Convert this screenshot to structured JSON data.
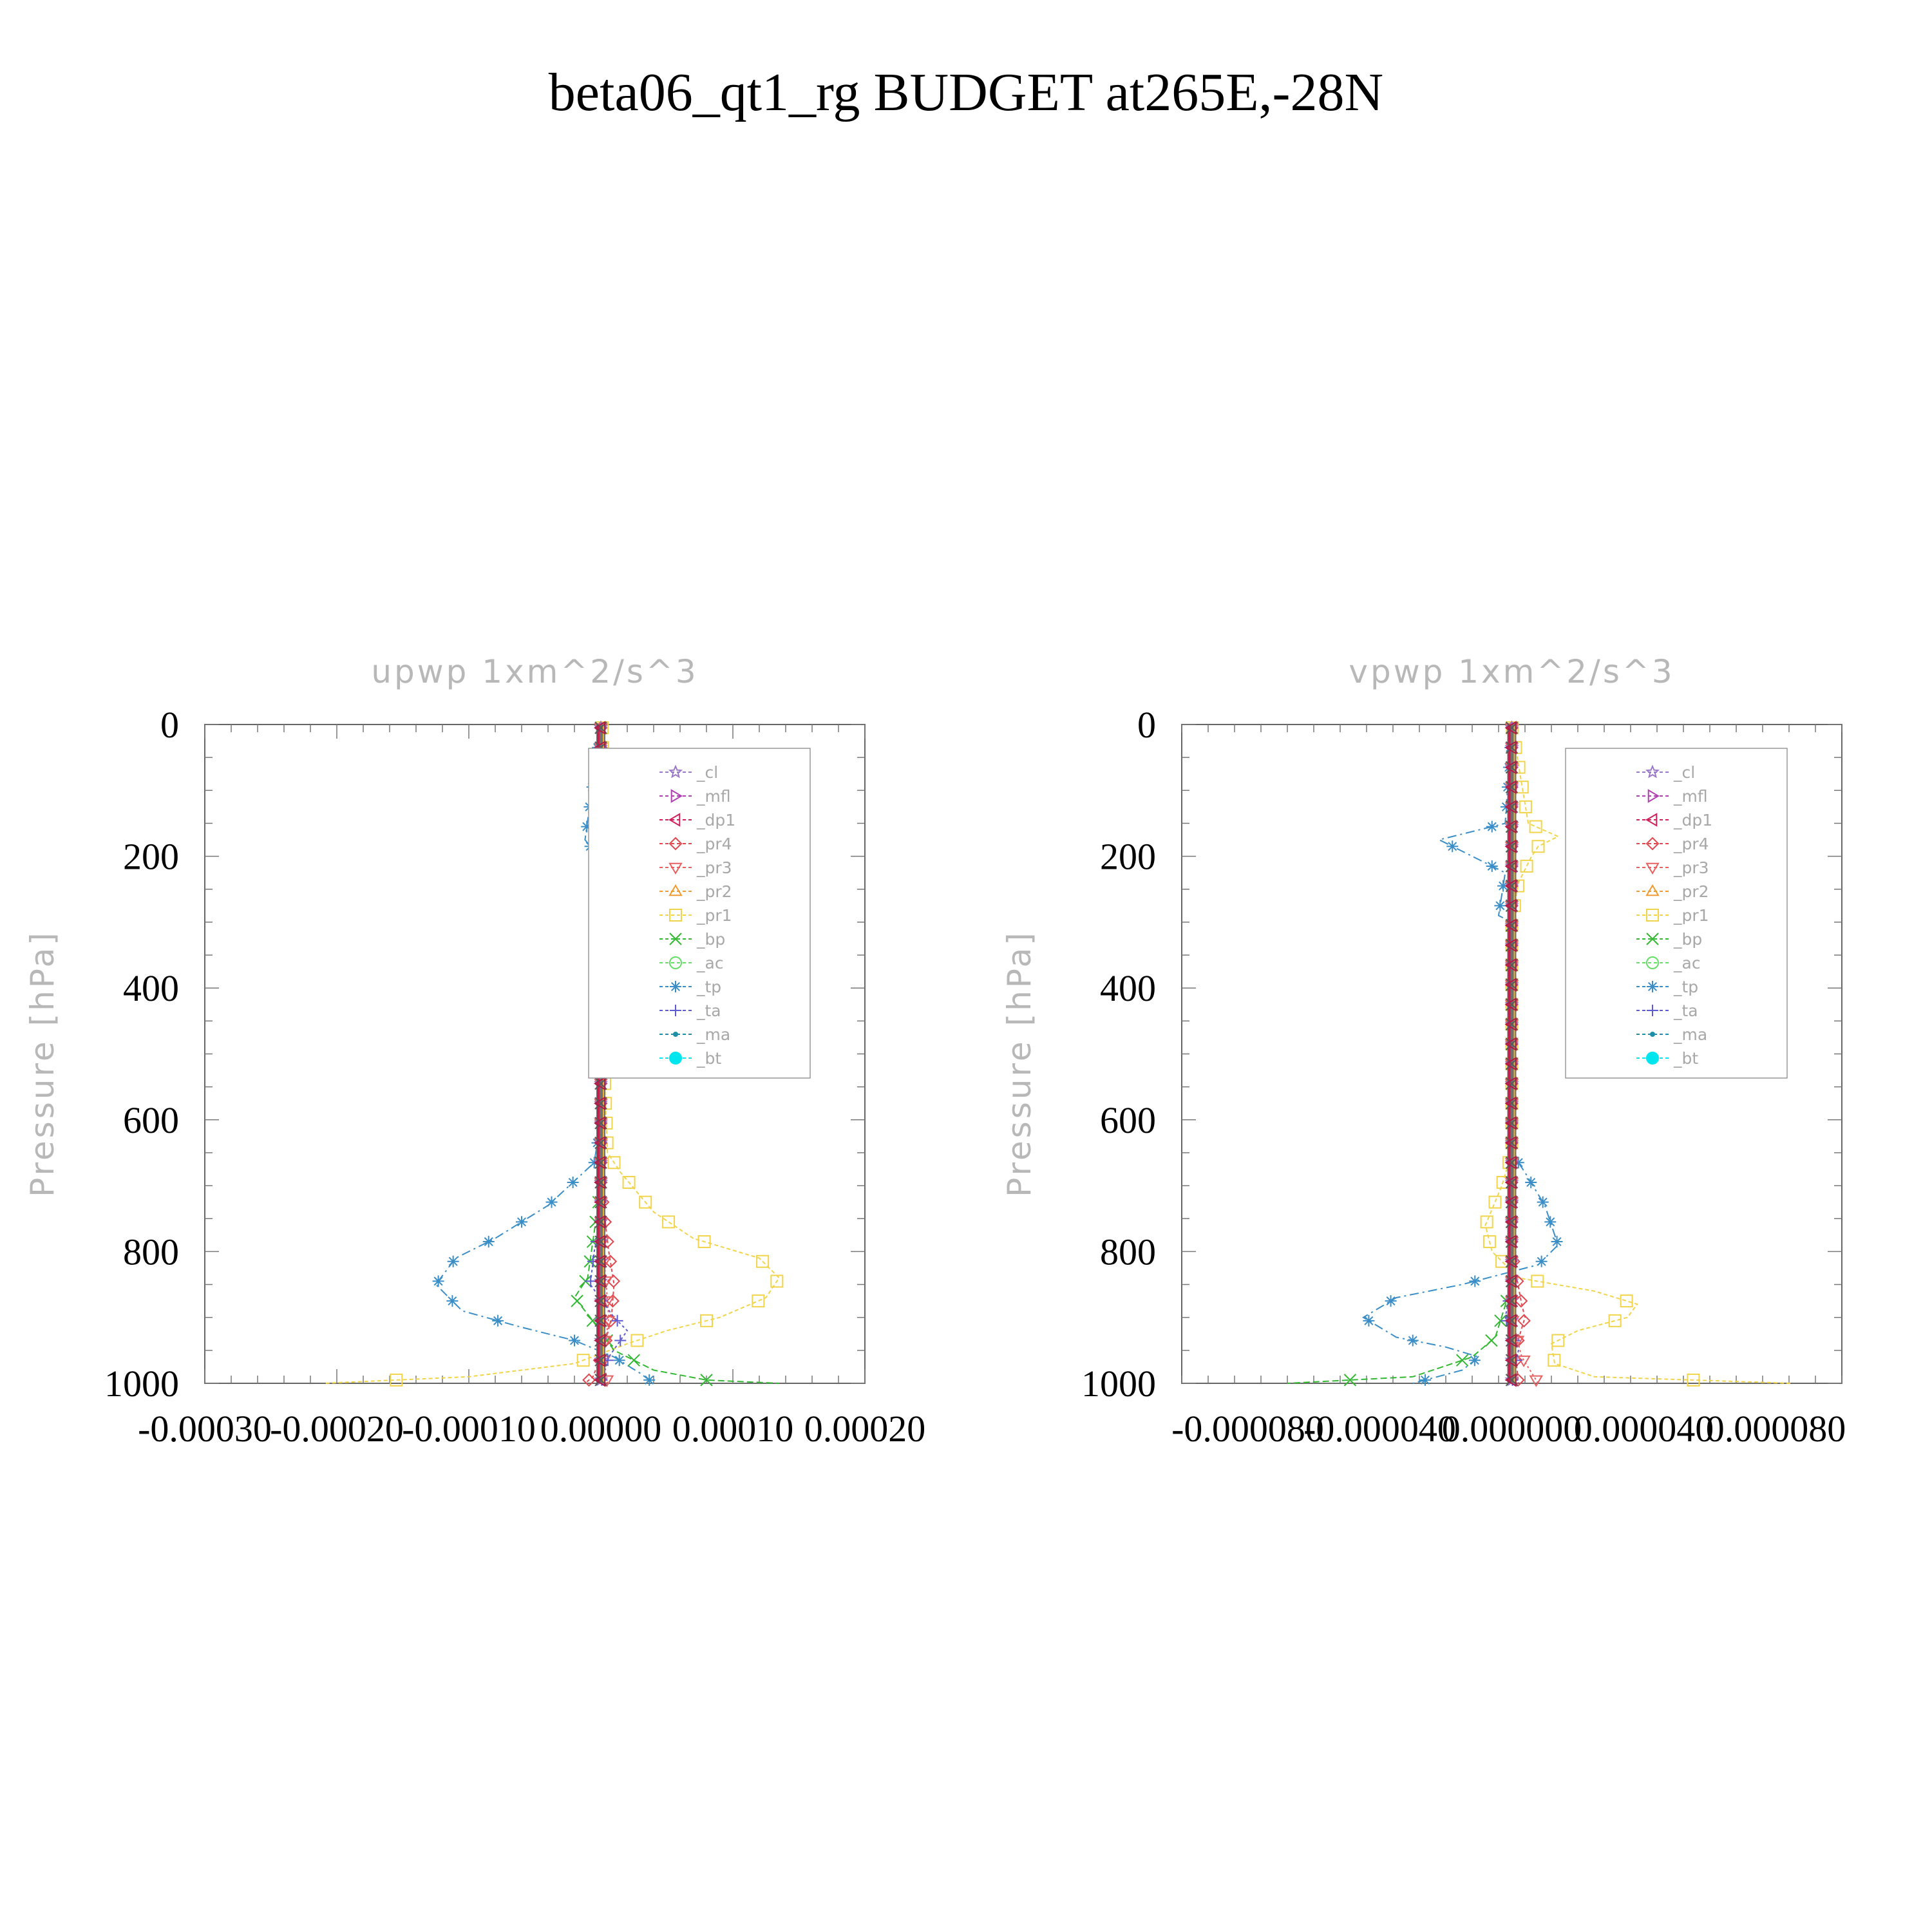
{
  "title": "beta06_qt1_rg  BUDGET at265E,-28N",
  "colors": {
    "cl": "#9a78c8",
    "mfl": "#b040b0",
    "dp1": "#d0205a",
    "pr4": "#e04850",
    "pr3": "#e86060",
    "pr2": "#f09a30",
    "pr1": "#f2d44a",
    "bp": "#33b833",
    "ac": "#66dd66",
    "tp": "#3a8ec8",
    "ta": "#5c5cd0",
    "ma": "#1e8ea8",
    "bt": "#00e5ee"
  },
  "chart_data": [
    {
      "type": "line",
      "title": "upwp   1xm^2/s^3",
      "ylabel": "Pressure [hPa]",
      "xlim": [
        -0.0003,
        0.0002
      ],
      "ylim": [
        1000,
        0
      ],
      "xticks": [
        -0.0003,
        -0.0002,
        -0.0001,
        0.0,
        0.0001,
        0.0002
      ],
      "xtick_labels": [
        "-0.00030",
        "-0.00020",
        "-0.00010",
        "0.00000",
        "0.00010",
        "0.00020"
      ],
      "yticks": [
        0,
        200,
        400,
        600,
        800,
        1000
      ],
      "ytick_labels": [
        "0",
        "200",
        "400",
        "600",
        "800",
        "1000"
      ],
      "legend": [
        "_cl",
        "_mfl",
        "_dp1",
        "_pr4",
        "_pr3",
        "_pr2",
        "_pr1",
        "_bp",
        "_ac",
        "_tp",
        "_ta",
        "_ma",
        "_bt"
      ],
      "legend_position": "top-right",
      "series": [
        {
          "name": "_pr1",
          "key": "pr1",
          "marker": "square",
          "dash": "6,4",
          "points": [
            [
              1e-06,
              0
            ],
            [
              3e-06,
              170
            ],
            [
              2e-06,
              200
            ],
            [
              1e-06,
              300
            ],
            [
              2e-06,
              500
            ],
            [
              5e-06,
              650
            ],
            [
              1.5e-05,
              680
            ],
            [
              4e-05,
              740
            ],
            [
              7e-05,
              780
            ],
            [
              0.00012,
              810
            ],
            [
              0.000135,
              840
            ],
            [
              0.000125,
              870
            ],
            [
              9e-05,
              900
            ],
            [
              5e-05,
              920
            ],
            [
              2e-05,
              940
            ],
            [
              -2e-05,
              970
            ],
            [
              -0.0001,
              990
            ],
            [
              -0.00021,
              1000
            ]
          ]
        },
        {
          "name": "_tp",
          "key": "tp",
          "marker": "asterisk",
          "dash": "14,6,3,6",
          "points": [
            [
              0,
              0
            ],
            [
              -1.2e-05,
              175
            ],
            [
              -2e-06,
              200
            ],
            [
              -2e-06,
              300
            ],
            [
              0,
              600
            ],
            [
              -5e-06,
              665
            ],
            [
              -4e-05,
              730
            ],
            [
              -8e-05,
              780
            ],
            [
              -0.00011,
              810
            ],
            [
              -0.000125,
              850
            ],
            [
              -0.000105,
              890
            ],
            [
              -6e-05,
              915
            ],
            [
              -2e-05,
              935
            ],
            [
              1e-05,
              960
            ],
            [
              3e-05,
              985
            ],
            [
              4e-05,
              1000
            ]
          ]
        },
        {
          "name": "_bp",
          "key": "bp",
          "marker": "x",
          "dash": "10,5",
          "points": [
            [
              0,
              0
            ],
            [
              0,
              700
            ],
            [
              -1e-05,
              840
            ],
            [
              -2e-05,
              870
            ],
            [
              -8e-06,
              900
            ],
            [
              1e-05,
              950
            ],
            [
              4e-05,
              980
            ],
            [
              8e-05,
              995
            ],
            [
              0.000135,
              1000
            ]
          ]
        },
        {
          "name": "_pr4",
          "key": "pr4",
          "marker": "diamond",
          "dash": "5,4",
          "points": [
            [
              0,
              0
            ],
            [
              0,
              700
            ],
            [
              6e-06,
              800
            ],
            [
              1e-05,
              850
            ],
            [
              8e-06,
              900
            ],
            [
              2e-06,
              950
            ],
            [
              -6e-06,
              990
            ],
            [
              -1.2e-05,
              1000
            ]
          ]
        },
        {
          "name": "_pr3",
          "key": "pr3",
          "marker": "triangle-down",
          "dash": "3,4",
          "points": [
            [
              0,
              0
            ],
            [
              0,
              750
            ],
            [
              4e-06,
              850
            ],
            [
              6e-06,
              900
            ],
            [
              2e-06,
              960
            ],
            [
              5e-06,
              1000
            ]
          ]
        },
        {
          "name": "_ta",
          "key": "ta",
          "marker": "plus",
          "dash": "4,4",
          "points": [
            [
              0,
              0
            ],
            [
              0,
              750
            ],
            [
              -5e-06,
              800
            ],
            [
              -8e-06,
              850
            ],
            [
              1e-05,
              900
            ],
            [
              2e-05,
              920
            ],
            [
              6e-06,
              960
            ],
            [
              0,
              1000
            ]
          ]
        },
        {
          "name": "_cl",
          "key": "cl",
          "marker": "star",
          "dash": "none",
          "points": [
            [
              0,
              0
            ],
            [
              0,
              1000
            ]
          ]
        }
      ]
    },
    {
      "type": "line",
      "title": "vpwp   1xm^2/s^3",
      "ylabel": "Pressure [hPa]",
      "xlim": [
        -0.0001,
        0.0001
      ],
      "ylim": [
        1000,
        0
      ],
      "xticks": [
        -8e-05,
        -4e-05,
        0.0,
        4e-05,
        8e-05
      ],
      "xtick_labels": [
        "-0.000080",
        "-0.000040",
        "0.000000",
        "0.000040",
        "0.000080"
      ],
      "yticks": [
        0,
        200,
        400,
        600,
        800,
        1000
      ],
      "ytick_labels": [
        "0",
        "200",
        "400",
        "600",
        "800",
        "1000"
      ],
      "legend": [
        "_cl",
        "_mfl",
        "_dp1",
        "_pr4",
        "_pr3",
        "_pr2",
        "_pr1",
        "_bp",
        "_ac",
        "_tp",
        "_ta",
        "_ma",
        "_bt"
      ],
      "legend_position": "top-right",
      "series": [
        {
          "name": "_pr1",
          "key": "pr1",
          "marker": "square",
          "dash": "6,4",
          "points": [
            [
              0,
              0
            ],
            [
              5e-06,
              150
            ],
            [
              1.4e-05,
              170
            ],
            [
              8e-06,
              185
            ],
            [
              6e-06,
              200
            ],
            [
              2e-06,
              240
            ],
            [
              0,
              300
            ],
            [
              0,
              650
            ],
            [
              -3e-06,
              700
            ],
            [
              -8e-06,
              760
            ],
            [
              -6e-06,
              800
            ],
            [
              2e-06,
              840
            ],
            [
              2.5e-05,
              860
            ],
            [
              3.8e-05,
              880
            ],
            [
              3.5e-05,
              900
            ],
            [
              2e-05,
              920
            ],
            [
              1.2e-05,
              940
            ],
            [
              1.3e-05,
              970
            ],
            [
              2.5e-05,
              990
            ],
            [
              8.5e-05,
              1000
            ]
          ]
        },
        {
          "name": "_tp",
          "key": "tp",
          "marker": "asterisk",
          "dash": "14,6,3,6",
          "points": [
            [
              0,
              0
            ],
            [
              -2e-06,
              150
            ],
            [
              -1.4e-05,
              165
            ],
            [
              -2.2e-05,
              175
            ],
            [
              -1.2e-05,
              200
            ],
            [
              -2e-06,
              225
            ],
            [
              -4e-06,
              290
            ],
            [
              0,
              300
            ],
            [
              0,
              650
            ],
            [
              4e-06,
              680
            ],
            [
              1e-05,
              730
            ],
            [
              1.4e-05,
              790
            ],
            [
              8e-06,
              820
            ],
            [
              -1.5e-05,
              850
            ],
            [
              -3.5e-05,
              870
            ],
            [
              -4.5e-05,
              900
            ],
            [
              -3.5e-05,
              930
            ],
            [
              -2e-05,
              945
            ],
            [
              -1e-05,
              960
            ],
            [
              -1.5e-05,
              980
            ],
            [
              -3e-05,
              1000
            ]
          ]
        },
        {
          "name": "_bp",
          "key": "bp",
          "marker": "x",
          "dash": "10,5",
          "points": [
            [
              0,
              0
            ],
            [
              0,
              850
            ],
            [
              -5e-06,
              930
            ],
            [
              -1.2e-05,
              960
            ],
            [
              -3e-05,
              990
            ],
            [
              -6.8e-05,
              1000
            ]
          ]
        },
        {
          "name": "_pr4",
          "key": "pr4",
          "marker": "diamond",
          "dash": "5,4",
          "points": [
            [
              0,
              0
            ],
            [
              0,
              800
            ],
            [
              3e-06,
              880
            ],
            [
              4e-06,
              900
            ],
            [
              1e-06,
              950
            ],
            [
              2e-06,
              1000
            ]
          ]
        },
        {
          "name": "_pr3",
          "key": "pr3",
          "marker": "triangle-down",
          "dash": "3,4",
          "points": [
            [
              0,
              0
            ],
            [
              0,
              900
            ],
            [
              3e-06,
              960
            ],
            [
              8e-06,
              1000
            ]
          ]
        },
        {
          "name": "_ta",
          "key": "ta",
          "marker": "plus",
          "dash": "4,4",
          "points": [
            [
              0,
              0
            ],
            [
              0,
              850
            ],
            [
              -2e-06,
              900
            ],
            [
              2e-06,
              950
            ],
            [
              0,
              1000
            ]
          ]
        },
        {
          "name": "_cl",
          "key": "cl",
          "marker": "star",
          "dash": "none",
          "points": [
            [
              0,
              0
            ],
            [
              0,
              1000
            ]
          ]
        }
      ]
    }
  ]
}
